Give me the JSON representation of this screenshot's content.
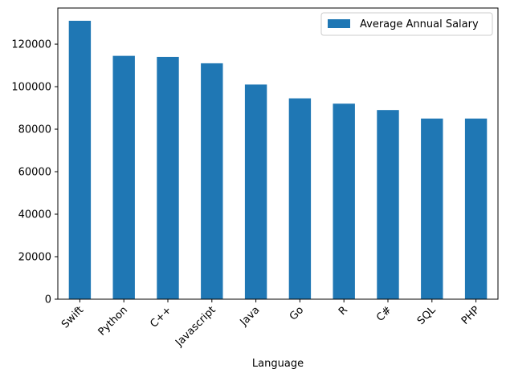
{
  "chart_data": {
    "type": "bar",
    "categories": [
      "Swift",
      "Python",
      "C++",
      "Javascript",
      "Java",
      "Go",
      "R",
      "C#",
      "SQL",
      "PHP"
    ],
    "series": [
      {
        "name": "Average Annual Salary",
        "values": [
          131000,
          114500,
          114000,
          111000,
          101000,
          94500,
          92000,
          89000,
          85000,
          85000
        ],
        "color": "#1f77b4"
      }
    ],
    "title": "",
    "xlabel": "Language",
    "ylabel": "",
    "ylim": [
      0,
      137000
    ],
    "yticks": [
      0,
      20000,
      40000,
      60000,
      80000,
      100000,
      120000
    ],
    "ytick_labels": [
      "0",
      "20000",
      "40000",
      "60000",
      "80000",
      "100000",
      "120000"
    ],
    "grid": false,
    "legend": "top-right"
  }
}
